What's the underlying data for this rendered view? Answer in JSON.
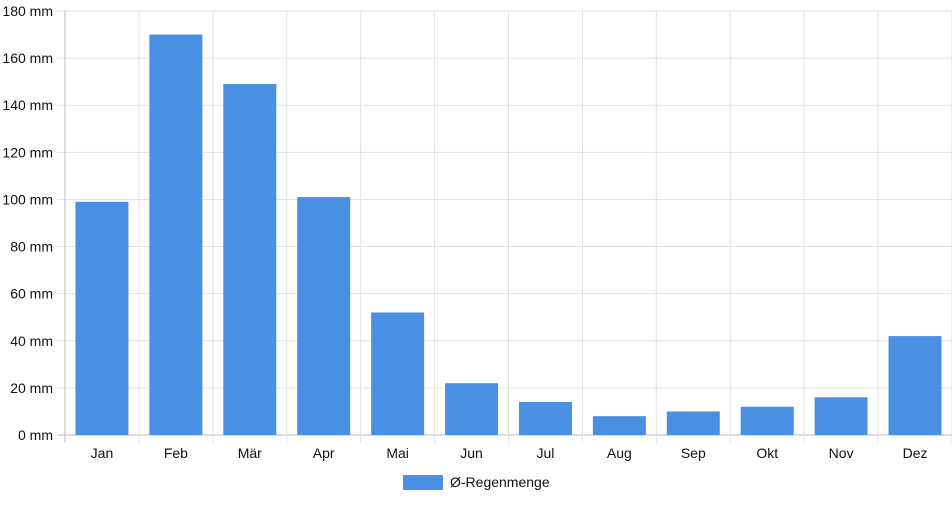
{
  "chart_data": {
    "type": "bar",
    "categories": [
      "Jan",
      "Feb",
      "Mär",
      "Apr",
      "Mai",
      "Jun",
      "Jul",
      "Aug",
      "Sep",
      "Okt",
      "Nov",
      "Dez"
    ],
    "series": [
      {
        "name": "Ø-Regenmenge",
        "color": "#4a90e2",
        "values": [
          99,
          170,
          149,
          101,
          52,
          22,
          14,
          8,
          10,
          12,
          16,
          42
        ]
      }
    ],
    "ylim": [
      0,
      180
    ],
    "ytick_step": 20,
    "ytick_unit": "mm",
    "grid": true,
    "legend_position": "bottom-center"
  }
}
